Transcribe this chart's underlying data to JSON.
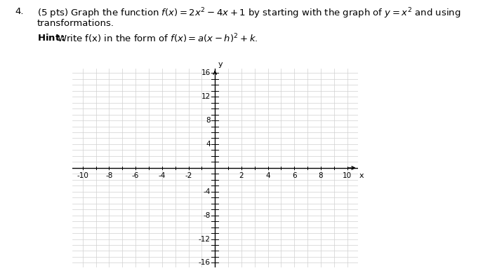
{
  "x_min": -10,
  "x_max": 10,
  "y_min": -16,
  "y_max": 16,
  "grid_color": "#d0d0d0",
  "axis_color": "#000000",
  "background_color": "#ffffff",
  "text_color": "#000000",
  "func_color": "#c0392b",
  "label_color": "#3333cc",
  "num4": "4.",
  "line1_plain": "(5 pts) Graph the function ",
  "line1_func": "f(x) = 2x² − 4x + 1",
  "line1_mid": " by starting with the graph of ",
  "line1_func2": "y = x²",
  "line1_end": " and using",
  "line2": "transformations.",
  "hint_bold": "Hint:",
  "hint_mid": " Write f(x) in the form of ",
  "hint_func": "f(x) = a(x − h)² + k",
  "hint_end": ".",
  "x_label": "x",
  "y_label": "y",
  "x_ticks": [
    -10,
    -8,
    -6,
    -4,
    -2,
    2,
    4,
    6,
    8,
    10
  ],
  "y_ticks": [
    -16,
    -12,
    -8,
    -4,
    4,
    8,
    12,
    16
  ],
  "fontsize_text": 9.5,
  "fontsize_tick": 7.5
}
